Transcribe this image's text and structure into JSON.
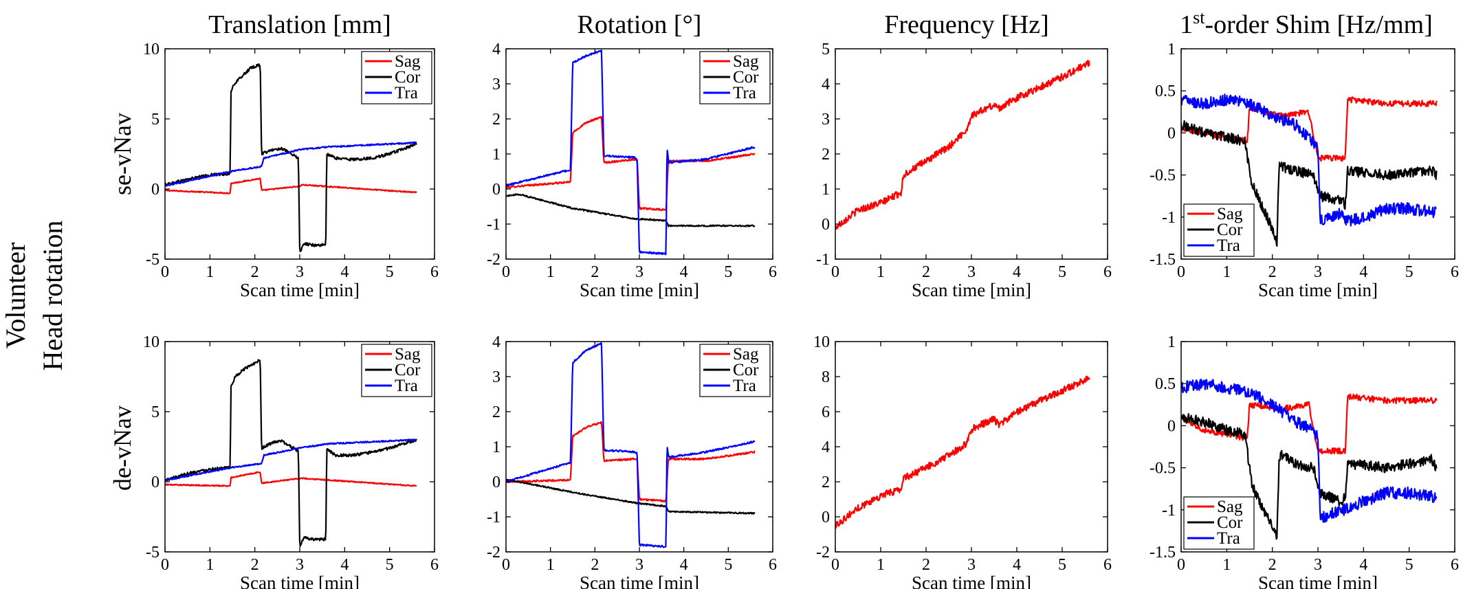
{
  "figure": {
    "column_titles": [
      "Translation [mm]",
      "Rotation [°]",
      "Frequency [Hz]",
      "1st-order Shim [Hz/mm]"
    ],
    "shim_title_parts": {
      "pre": "1",
      "sup": "st",
      "post": "-order Shim [Hz/mm]"
    },
    "row_labels": [
      "se-vNav",
      "de-vNav"
    ],
    "side_label": [
      "Volunteer",
      "Head rotation"
    ]
  },
  "colors": {
    "Sag": "#ff0000",
    "Cor": "#000000",
    "Tra": "#0000ff"
  },
  "chart_data": [
    {
      "id": "p00",
      "type": "line",
      "row": 0,
      "col": 0,
      "xlabel": "Scan time [min]",
      "xlim": [
        0,
        6
      ],
      "xticks": [
        0,
        1,
        2,
        3,
        4,
        5,
        6
      ],
      "ylim": [
        -5,
        10
      ],
      "yticks": [
        -5,
        0,
        5,
        10
      ],
      "legend": "top-right",
      "series": [
        {
          "name": "Sag",
          "color": "#ff0000",
          "noise": 0.04,
          "x": [
            0,
            1.45,
            1.47,
            2.12,
            2.15,
            3.0,
            3.05,
            5.6
          ],
          "y": [
            -0.1,
            -0.3,
            0.4,
            0.75,
            -0.1,
            0.2,
            0.3,
            -0.25
          ]
        },
        {
          "name": "Cor",
          "color": "#000000",
          "noise": 0.1,
          "x": [
            0,
            0.5,
            1.0,
            1.45,
            1.47,
            1.55,
            1.7,
            1.9,
            2.12,
            2.15,
            2.4,
            2.6,
            2.8,
            2.97,
            3.0,
            3.1,
            3.3,
            3.58,
            3.6,
            3.8,
            4.2,
            4.6,
            5.0,
            5.6
          ],
          "y": [
            0.3,
            0.7,
            1.0,
            1.1,
            7.0,
            7.5,
            8.0,
            8.6,
            8.9,
            2.5,
            2.8,
            2.9,
            2.5,
            2.2,
            -4.5,
            -3.9,
            -4.0,
            -4.0,
            2.5,
            2.2,
            2.1,
            2.2,
            2.5,
            3.2
          ]
        },
        {
          "name": "Tra",
          "color": "#0000ff",
          "noise": 0.05,
          "x": [
            0,
            1.45,
            2.15,
            2.2,
            3.0,
            3.6,
            5.6
          ],
          "y": [
            0.2,
            1.25,
            1.6,
            2.2,
            2.8,
            3.0,
            3.3
          ]
        }
      ]
    },
    {
      "id": "p01",
      "type": "line",
      "row": 0,
      "col": 1,
      "xlabel": "Scan time [min]",
      "xlim": [
        0,
        6
      ],
      "xticks": [
        0,
        1,
        2,
        3,
        4,
        5,
        6
      ],
      "ylim": [
        -2,
        4
      ],
      "yticks": [
        -2,
        -1,
        0,
        1,
        2,
        3,
        4
      ],
      "legend": "top-right",
      "series": [
        {
          "name": "Sag",
          "color": "#ff0000",
          "noise": 0.025,
          "x": [
            0,
            1.45,
            1.5,
            1.8,
            2.15,
            2.2,
            2.9,
            2.95,
            3.0,
            3.6,
            3.65,
            4.5,
            5.6
          ],
          "y": [
            0.05,
            0.2,
            1.6,
            1.9,
            2.05,
            0.75,
            0.85,
            0.85,
            -0.55,
            -0.6,
            0.8,
            0.8,
            1.0
          ]
        },
        {
          "name": "Cor",
          "color": "#000000",
          "noise": 0.02,
          "x": [
            0,
            0.3,
            1.5,
            2.9,
            3.6,
            3.65,
            5.6
          ],
          "y": [
            -0.2,
            -0.15,
            -0.55,
            -0.85,
            -0.9,
            -1.05,
            -1.05
          ]
        },
        {
          "name": "Tra",
          "color": "#0000ff",
          "noise": 0.025,
          "x": [
            0,
            1.45,
            1.5,
            1.8,
            2.15,
            2.2,
            2.9,
            2.95,
            3.0,
            3.6,
            3.62,
            3.66,
            4.5,
            5.6
          ],
          "y": [
            0.1,
            0.55,
            3.6,
            3.8,
            3.95,
            0.95,
            0.9,
            0.8,
            -1.8,
            -1.85,
            1.2,
            0.75,
            0.85,
            1.2
          ]
        }
      ]
    },
    {
      "id": "p02",
      "type": "line",
      "row": 0,
      "col": 2,
      "xlabel": "Scan time [min]",
      "xlim": [
        0,
        6
      ],
      "xticks": [
        0,
        1,
        2,
        3,
        4,
        5,
        6
      ],
      "ylim": [
        -1,
        5
      ],
      "yticks": [
        -1,
        0,
        1,
        2,
        3,
        4,
        5
      ],
      "legend": "none",
      "series": [
        {
          "name": "Sag",
          "color": "#ff0000",
          "noise": 0.1,
          "x": [
            0,
            0.5,
            1.0,
            1.45,
            1.5,
            2.0,
            2.5,
            2.9,
            3.0,
            3.5,
            3.6,
            4.0,
            4.5,
            5.0,
            5.6
          ],
          "y": [
            -0.1,
            0.4,
            0.6,
            0.9,
            1.4,
            1.8,
            2.2,
            2.7,
            3.1,
            3.4,
            3.3,
            3.6,
            3.9,
            4.2,
            4.6
          ]
        }
      ]
    },
    {
      "id": "p03",
      "type": "line",
      "row": 0,
      "col": 3,
      "xlabel": "Scan time [min]",
      "xlim": [
        0,
        6
      ],
      "xticks": [
        0,
        1,
        2,
        3,
        4,
        5,
        6
      ],
      "ylim": [
        -1.5,
        1
      ],
      "yticks": [
        -1.5,
        -1,
        -0.5,
        0,
        0.5,
        1
      ],
      "legend": "bottom-left",
      "series": [
        {
          "name": "Sag",
          "color": "#ff0000",
          "noise": 0.035,
          "x": [
            0,
            0.5,
            1.0,
            1.45,
            1.5,
            2.2,
            2.8,
            3.0,
            3.6,
            3.65,
            4.5,
            5.6
          ],
          "y": [
            0.05,
            0.0,
            -0.05,
            -0.1,
            0.3,
            0.2,
            0.25,
            -0.3,
            -0.3,
            0.4,
            0.35,
            0.35
          ]
        },
        {
          "name": "Cor",
          "color": "#000000",
          "noise": 0.06,
          "x": [
            0,
            0.5,
            1.0,
            1.4,
            1.55,
            1.8,
            2.05,
            2.1,
            2.15,
            2.2,
            2.5,
            2.9,
            3.05,
            3.5,
            3.6,
            3.65,
            4.5,
            5.5,
            5.6
          ],
          "y": [
            0.1,
            0.0,
            -0.05,
            -0.1,
            -0.6,
            -0.9,
            -1.2,
            -1.3,
            -0.35,
            -0.4,
            -0.45,
            -0.5,
            -0.75,
            -0.8,
            -0.85,
            -0.45,
            -0.5,
            -0.45,
            -0.5
          ]
        },
        {
          "name": "Tra",
          "color": "#0000ff",
          "noise": 0.07,
          "x": [
            0,
            0.5,
            1.0,
            1.5,
            2.0,
            2.5,
            2.9,
            3.0,
            3.05,
            3.5,
            3.6,
            4.0,
            4.5,
            5.0,
            5.6
          ],
          "y": [
            0.4,
            0.35,
            0.4,
            0.35,
            0.2,
            0.1,
            -0.1,
            -0.2,
            -1.05,
            -0.95,
            -1.05,
            -1.0,
            -0.9,
            -0.9,
            -0.95
          ]
        }
      ]
    },
    {
      "id": "p10",
      "type": "line",
      "row": 1,
      "col": 0,
      "xlabel": "Scan time [min]",
      "xlim": [
        0,
        6
      ],
      "xticks": [
        0,
        1,
        2,
        3,
        4,
        5,
        6
      ],
      "ylim": [
        -5,
        10
      ],
      "yticks": [
        -5,
        0,
        5,
        10
      ],
      "legend": "top-right",
      "series": [
        {
          "name": "Sag",
          "color": "#ff0000",
          "noise": 0.04,
          "x": [
            0,
            1.45,
            1.47,
            2.12,
            2.15,
            3.0,
            3.05,
            5.6
          ],
          "y": [
            -0.2,
            -0.3,
            0.3,
            0.7,
            -0.1,
            0.25,
            0.25,
            -0.3
          ]
        },
        {
          "name": "Cor",
          "color": "#000000",
          "noise": 0.1,
          "x": [
            0,
            0.5,
            1.0,
            1.45,
            1.47,
            1.55,
            1.7,
            1.9,
            2.12,
            2.15,
            2.4,
            2.6,
            2.8,
            2.97,
            3.0,
            3.1,
            3.3,
            3.58,
            3.6,
            3.8,
            4.2,
            4.6,
            5.0,
            5.6
          ],
          "y": [
            0.1,
            0.6,
            0.9,
            1.0,
            6.8,
            7.4,
            7.9,
            8.3,
            8.7,
            2.4,
            2.8,
            2.9,
            2.5,
            2.2,
            -4.6,
            -4.0,
            -4.1,
            -4.1,
            2.3,
            1.9,
            1.9,
            2.1,
            2.4,
            3.0
          ]
        },
        {
          "name": "Tra",
          "color": "#0000ff",
          "noise": 0.05,
          "x": [
            0,
            1.45,
            2.15,
            2.2,
            3.0,
            3.6,
            5.6
          ],
          "y": [
            0.1,
            1.0,
            1.3,
            1.9,
            2.4,
            2.7,
            3.0
          ]
        }
      ]
    },
    {
      "id": "p11",
      "type": "line",
      "row": 1,
      "col": 1,
      "xlabel": "Scan time [min]",
      "xlim": [
        0,
        6
      ],
      "xticks": [
        0,
        1,
        2,
        3,
        4,
        5,
        6
      ],
      "ylim": [
        -2,
        4
      ],
      "yticks": [
        -2,
        -1,
        0,
        1,
        2,
        3,
        4
      ],
      "legend": "top-right",
      "series": [
        {
          "name": "Sag",
          "color": "#ff0000",
          "noise": 0.025,
          "x": [
            0,
            1.45,
            1.5,
            1.8,
            2.15,
            2.2,
            2.9,
            2.95,
            3.0,
            3.6,
            3.65,
            4.5,
            5.6
          ],
          "y": [
            0.0,
            0.05,
            1.3,
            1.55,
            1.7,
            0.6,
            0.65,
            0.65,
            -0.5,
            -0.55,
            0.65,
            0.65,
            0.85
          ]
        },
        {
          "name": "Cor",
          "color": "#000000",
          "noise": 0.02,
          "x": [
            0,
            0.3,
            1.5,
            2.9,
            3.6,
            3.65,
            5.6
          ],
          "y": [
            0.05,
            0.0,
            -0.3,
            -0.6,
            -0.7,
            -0.85,
            -0.9
          ]
        },
        {
          "name": "Tra",
          "color": "#0000ff",
          "noise": 0.025,
          "x": [
            0,
            1.45,
            1.5,
            1.8,
            2.15,
            2.2,
            2.9,
            2.95,
            3.0,
            3.6,
            3.62,
            3.66,
            4.5,
            5.6
          ],
          "y": [
            0.0,
            0.55,
            3.4,
            3.75,
            3.95,
            0.9,
            0.85,
            0.8,
            -1.8,
            -1.85,
            1.05,
            0.7,
            0.85,
            1.15
          ]
        }
      ]
    },
    {
      "id": "p12",
      "type": "line",
      "row": 1,
      "col": 2,
      "xlabel": "Scan time [min]",
      "xlim": [
        0,
        6
      ],
      "xticks": [
        0,
        1,
        2,
        3,
        4,
        5,
        6
      ],
      "ylim": [
        -2,
        10
      ],
      "yticks": [
        -2,
        0,
        2,
        4,
        6,
        8,
        10
      ],
      "legend": "none",
      "series": [
        {
          "name": "Sag",
          "color": "#ff0000",
          "noise": 0.2,
          "x": [
            0,
            0.5,
            1.0,
            1.45,
            1.5,
            2.0,
            2.5,
            2.9,
            3.0,
            3.5,
            3.6,
            4.0,
            4.5,
            5.0,
            5.6
          ],
          "y": [
            -0.5,
            0.5,
            1.2,
            1.6,
            2.2,
            2.8,
            3.5,
            4.2,
            5.0,
            5.6,
            5.2,
            6.0,
            6.6,
            7.2,
            7.9
          ]
        }
      ]
    },
    {
      "id": "p13",
      "type": "line",
      "row": 1,
      "col": 3,
      "xlabel": "Scan time [min]",
      "xlim": [
        0,
        6
      ],
      "xticks": [
        0,
        1,
        2,
        3,
        4,
        5,
        6
      ],
      "ylim": [
        -1.5,
        1
      ],
      "yticks": [
        -1.5,
        -1,
        -0.5,
        0,
        0.5,
        1
      ],
      "legend": "bottom-left",
      "series": [
        {
          "name": "Sag",
          "color": "#ff0000",
          "noise": 0.035,
          "x": [
            0,
            0.5,
            1.0,
            1.45,
            1.5,
            2.2,
            2.8,
            3.0,
            3.6,
            3.65,
            4.5,
            5.6
          ],
          "y": [
            0.1,
            -0.05,
            -0.1,
            -0.15,
            0.25,
            0.2,
            0.25,
            -0.3,
            -0.3,
            0.35,
            0.3,
            0.3
          ]
        },
        {
          "name": "Cor",
          "color": "#000000",
          "noise": 0.06,
          "x": [
            0,
            0.5,
            1.0,
            1.4,
            1.55,
            1.8,
            2.05,
            2.1,
            2.15,
            2.2,
            2.5,
            2.9,
            3.05,
            3.5,
            3.6,
            3.65,
            4.5,
            5.5,
            5.6
          ],
          "y": [
            0.1,
            0.05,
            -0.05,
            -0.1,
            -0.7,
            -1.0,
            -1.25,
            -1.3,
            -0.4,
            -0.35,
            -0.45,
            -0.5,
            -0.8,
            -0.9,
            -0.85,
            -0.45,
            -0.5,
            -0.4,
            -0.5
          ]
        },
        {
          "name": "Tra",
          "color": "#0000ff",
          "noise": 0.07,
          "x": [
            0,
            0.5,
            1.0,
            1.5,
            2.0,
            2.5,
            2.9,
            3.0,
            3.05,
            3.5,
            3.6,
            4.0,
            4.5,
            5.0,
            5.6
          ],
          "y": [
            0.45,
            0.5,
            0.45,
            0.4,
            0.25,
            0.05,
            -0.05,
            -0.15,
            -1.1,
            -1.0,
            -1.0,
            -0.9,
            -0.8,
            -0.8,
            -0.85
          ]
        }
      ]
    }
  ]
}
